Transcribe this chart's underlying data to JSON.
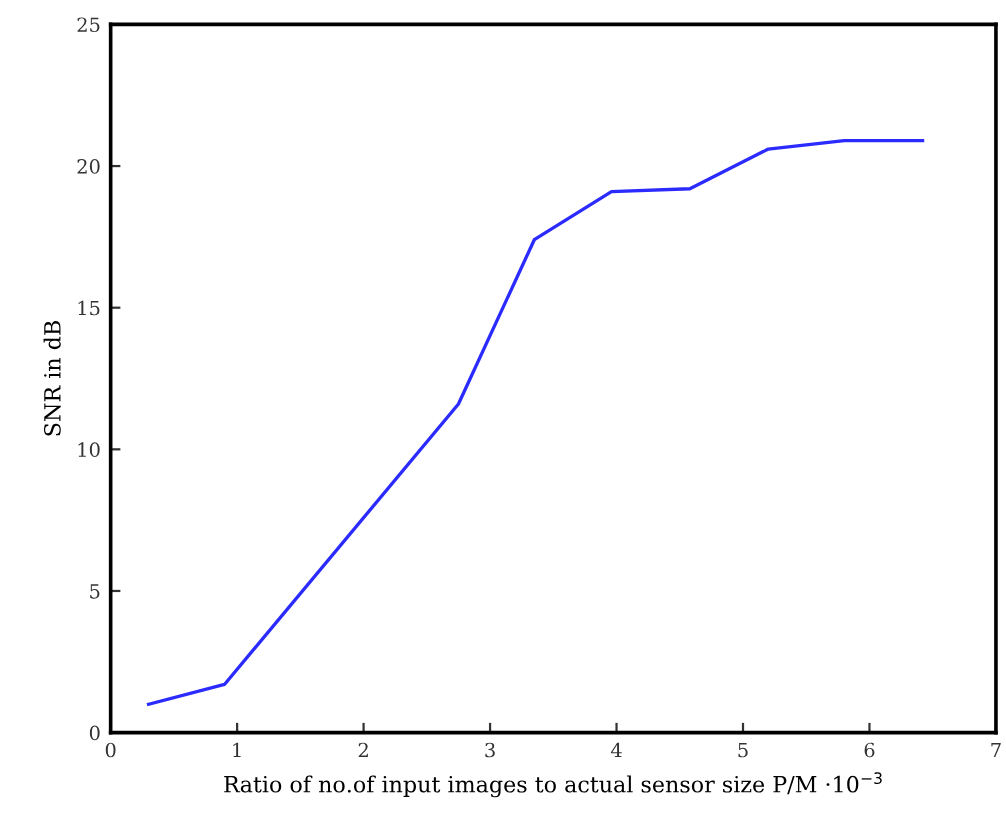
{
  "chart_data": {
    "type": "line",
    "xlabel": "Ratio of no.of input images to actual sensor size P/M ·10$^{−3}$",
    "ylabel": "SNR in dB",
    "x": [
      0.3,
      0.9,
      2.75,
      3.35,
      3.96,
      4.58,
      5.2,
      5.8,
      6.42
    ],
    "series": [
      {
        "color": "#2b2bff",
        "values": [
          1.0,
          1.7,
          11.6,
          17.4,
          19.1,
          19.2,
          20.6,
          20.9,
          20.9
        ]
      }
    ],
    "xlim": [
      0,
      7
    ],
    "ylim": [
      0,
      25
    ],
    "xticks": [
      0,
      1,
      2,
      3,
      4,
      5,
      6,
      7
    ],
    "yticks": [
      0,
      5,
      10,
      15,
      20,
      25
    ],
    "grid": false,
    "marker": "none",
    "line_style": "solid"
  }
}
